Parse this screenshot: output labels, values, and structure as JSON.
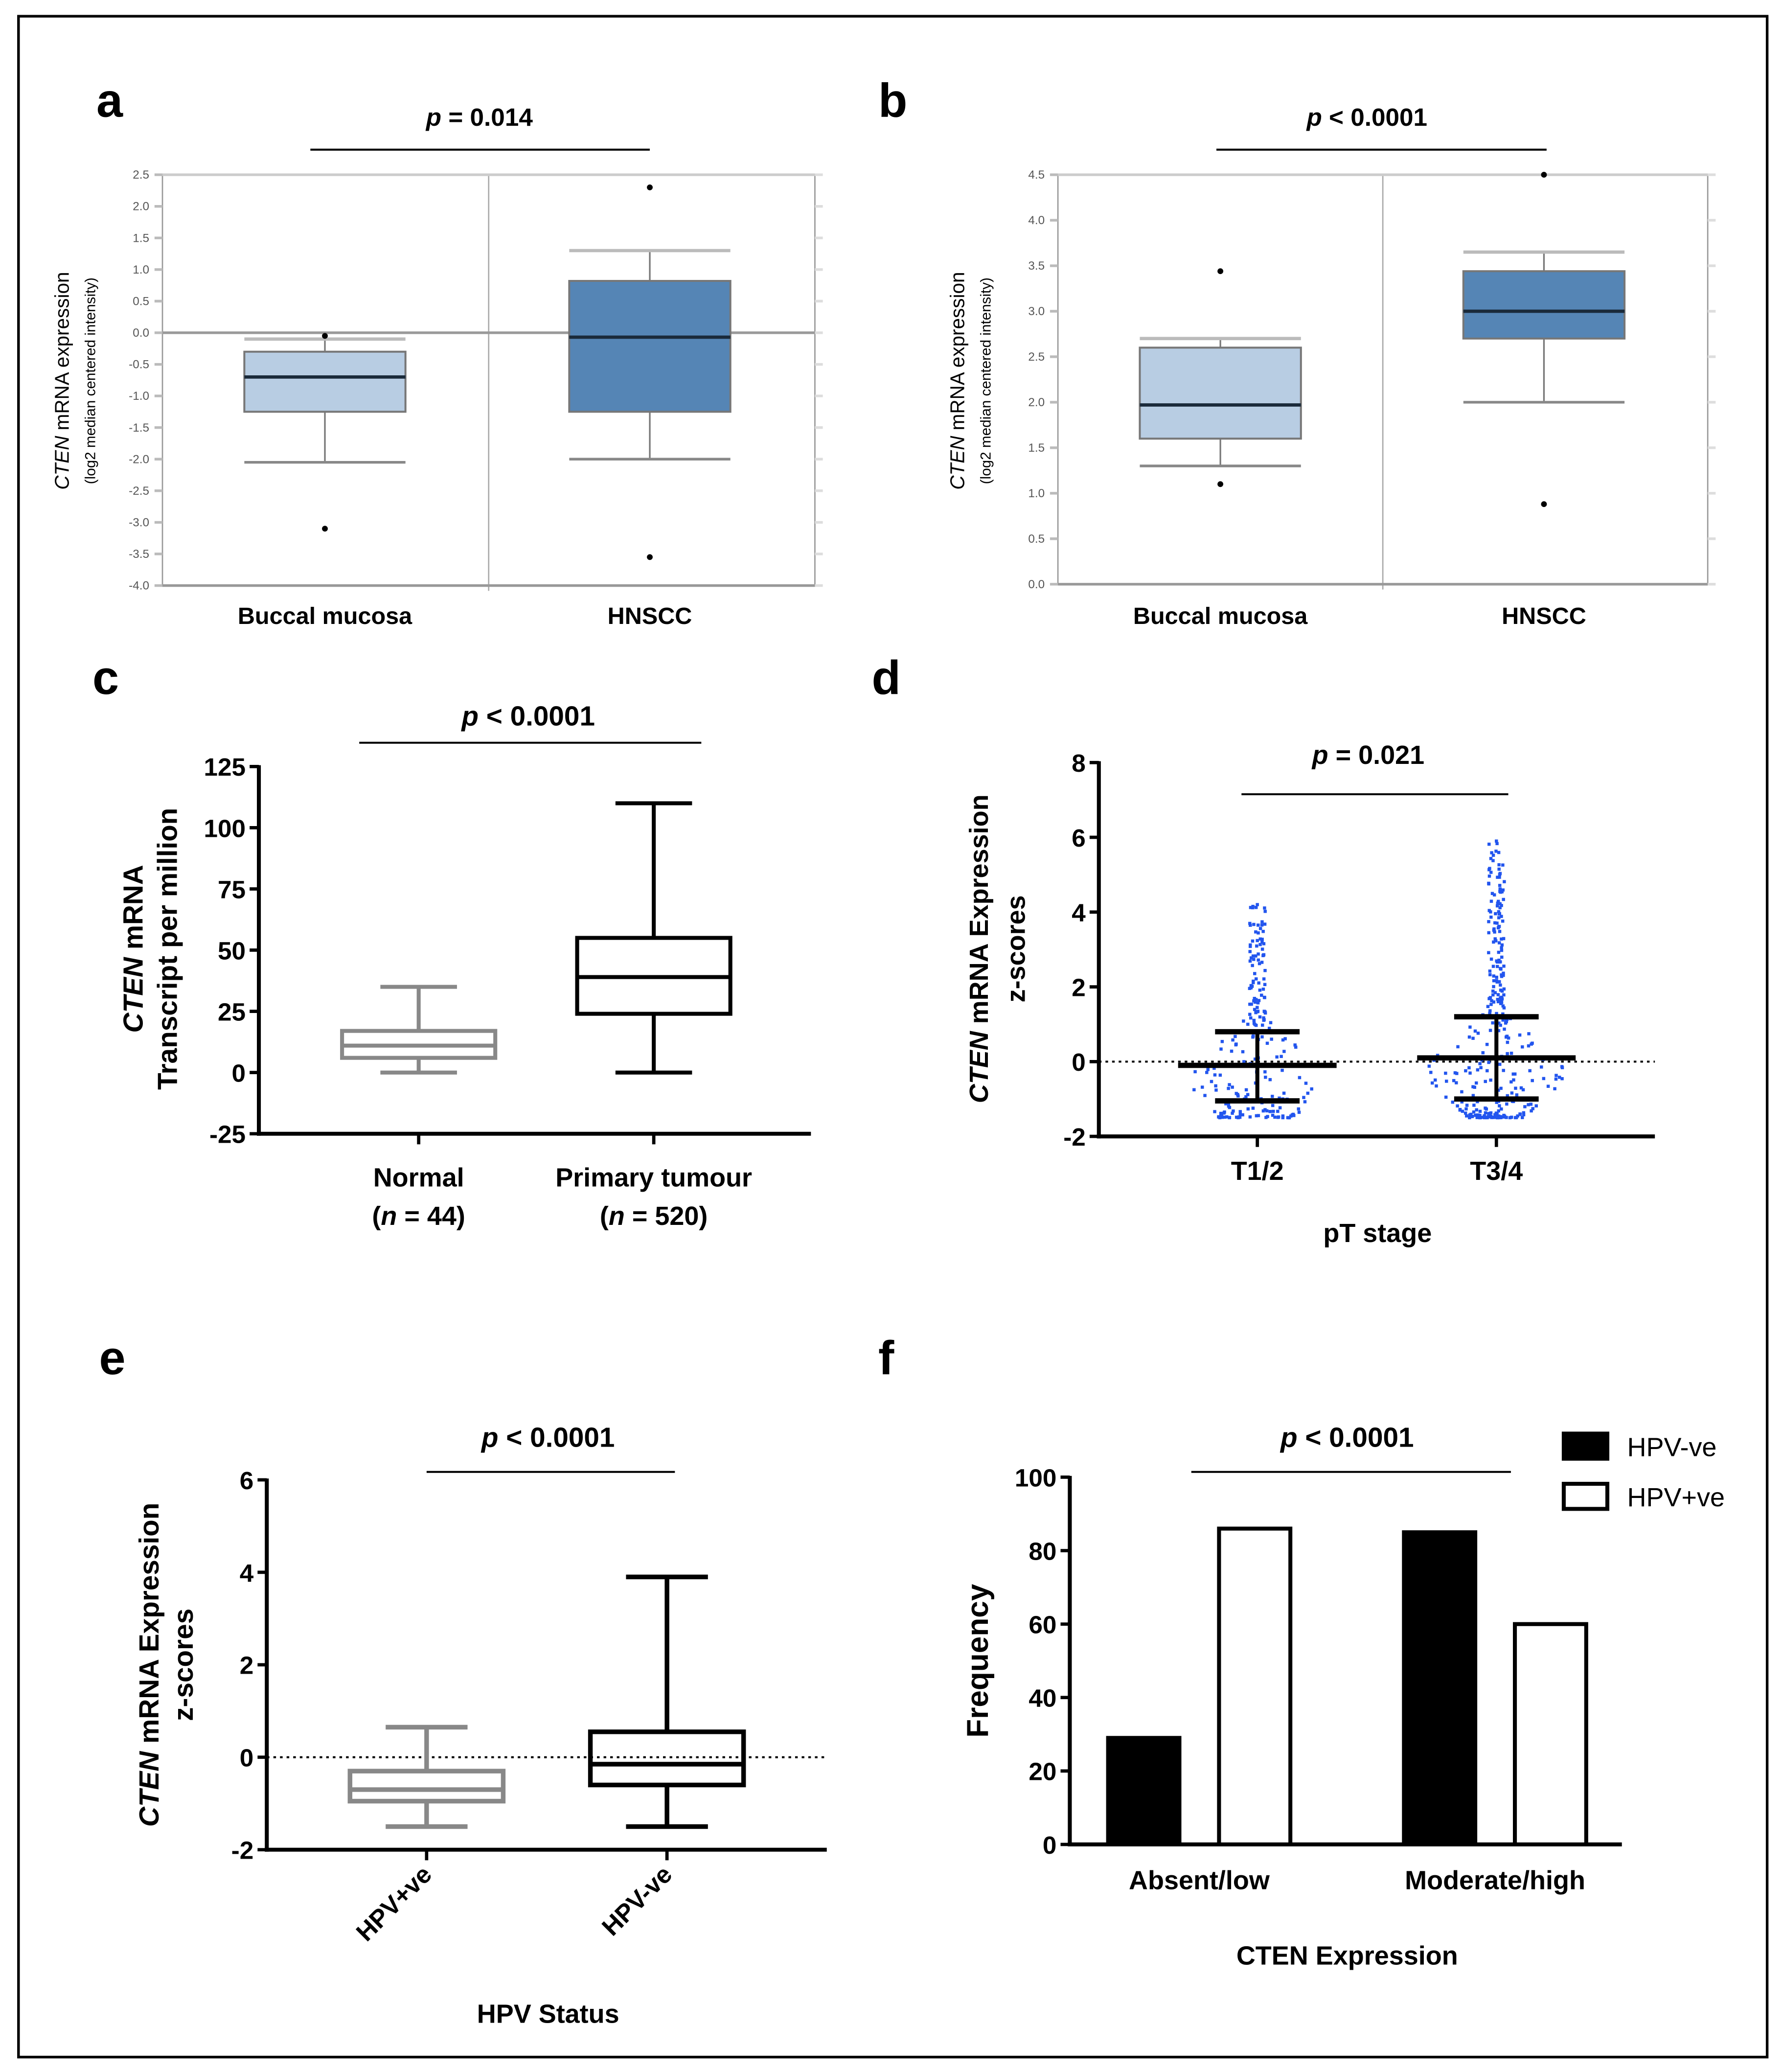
{
  "chart_data": [
    {
      "panel": "a",
      "type": "box",
      "p_symbol": "p",
      "p_rest": " = 0.014",
      "ylabel_italic": "CTEN",
      "ylabel_rest": " mRNA expression",
      "ylabel2": "(log2 median centered intensity)",
      "ylim": [
        -4.0,
        2.5
      ],
      "yticks": [
        "2.5",
        "2.0",
        "1.5",
        "1.0",
        "0.5",
        "0.0",
        "-0.5",
        "-1.0",
        "-1.5",
        "-2.0",
        "-2.5",
        "-3.0",
        "-3.5",
        "-4.0"
      ],
      "categories": [
        "Buccal mucosa",
        "HNSCC"
      ],
      "boxes": [
        {
          "min": -2.05,
          "q1": -1.25,
          "median": -0.7,
          "q3": -0.3,
          "max": -0.1,
          "outliers": [
            -0.05,
            -3.1
          ],
          "color": "#b8cde3"
        },
        {
          "min": -2.0,
          "q1": -1.25,
          "median": -0.07,
          "q3": 0.82,
          "max": 1.3,
          "outliers": [
            2.3,
            -3.55
          ],
          "color": "#5585b5"
        }
      ],
      "refline": 0
    },
    {
      "panel": "b",
      "type": "box",
      "p_symbol": "p",
      "p_rest": " < 0.0001",
      "ylabel_italic": "CTEN",
      "ylabel_rest": " mRNA expression",
      "ylabel2": "(log2 median centered intensity)",
      "ylim": [
        0,
        4.5
      ],
      "yticks": [
        "4.5",
        "4.0",
        "3.5",
        "3.0",
        "2.5",
        "2.0",
        "1.5",
        "1.0",
        "0.5",
        "0.0"
      ],
      "categories": [
        "Buccal mucosa",
        "HNSCC"
      ],
      "boxes": [
        {
          "min": 1.3,
          "q1": 1.6,
          "median": 1.97,
          "q3": 2.6,
          "max": 2.7,
          "outliers": [
            3.44,
            1.1
          ],
          "color": "#b8cde3"
        },
        {
          "min": 2.0,
          "q1": 2.7,
          "median": 3.0,
          "q3": 3.44,
          "max": 3.65,
          "outliers": [
            4.5,
            0.88
          ],
          "color": "#5585b5"
        }
      ]
    },
    {
      "panel": "c",
      "type": "box",
      "p_symbol": "p",
      "p_rest": " < 0.0001",
      "ylabel_italic": "CTEN",
      "ylabel_rest": " mRNA",
      "ylabel2": "Transcript per million",
      "ylim": [
        -25,
        125
      ],
      "yticks": [
        "125",
        "100",
        "75",
        "50",
        "25",
        "0",
        "-25"
      ],
      "categories": [
        "Normal",
        "Primary tumour"
      ],
      "n_labels": [
        {
          "pre": "(",
          "n": "n",
          " rest": "",
          "rest": " = 44)"
        },
        {
          "pre": "(",
          "n": "n",
          "rest": " = 520)"
        }
      ],
      "boxes": [
        {
          "min": 0,
          "q1": 6,
          "median": 11,
          "q3": 17,
          "max": 35,
          "color": "#888888"
        },
        {
          "min": 0,
          "q1": 24,
          "median": 39,
          "q3": 55,
          "max": 110,
          "color": "#000000"
        }
      ]
    },
    {
      "panel": "d",
      "type": "scatter",
      "p_symbol": "p",
      "p_rest": " = 0.021",
      "ylabel_italic": "CTEN",
      "ylabel_rest": " mRNA Expression",
      "ylabel2": "z-scores",
      "xlabel": "pT stage",
      "ylim": [
        -2,
        8
      ],
      "yticks": [
        "8",
        "6",
        "4",
        "2",
        "0",
        "-2"
      ],
      "categories": [
        "T1/2",
        "T3/4"
      ],
      "groups": [
        {
          "mean": -0.1,
          "sd_low": -1.05,
          "sd_high": 0.8,
          "range": [
            -1.5,
            4.2
          ]
        },
        {
          "mean": 0.1,
          "sd_low": -1.0,
          "sd_high": 1.2,
          "range": [
            -1.5,
            5.9
          ]
        }
      ],
      "point_color": "#2255ee"
    },
    {
      "panel": "e",
      "type": "box",
      "p_symbol": "p",
      "p_rest": " < 0.0001",
      "ylabel_italic": "CTEN",
      "ylabel_rest": " mRNA Expression",
      "ylabel2": "z-scores",
      "xlabel": "HPV Status",
      "ylim": [
        -2,
        6
      ],
      "yticks": [
        "6",
        "4",
        "2",
        "0",
        "-2"
      ],
      "categories": [
        "HPV+ve",
        "HPV-ve"
      ],
      "boxes": [
        {
          "min": -1.5,
          "q1": -0.95,
          "median": -0.7,
          "q3": -0.3,
          "max": 0.65,
          "color": "#888888"
        },
        {
          "min": -1.5,
          "q1": -0.6,
          "median": -0.15,
          "q3": 0.55,
          "max": 3.9,
          "color": "#000000"
        }
      ]
    },
    {
      "panel": "f",
      "type": "bar",
      "p_symbol": "p",
      "p_rest": " < 0.0001",
      "ylabel": "Frequency",
      "xlabel": "CTEN  Expression",
      "ylim": [
        0,
        100
      ],
      "yticks": [
        "100",
        "80",
        "60",
        "40",
        "20",
        "0"
      ],
      "categories": [
        "Absent/low",
        "Moderate/high"
      ],
      "series": [
        {
          "name": "HPV-ve",
          "values": [
            29,
            85
          ],
          "color": "#000000"
        },
        {
          "name": "HPV+ve",
          "values": [
            86,
            60
          ],
          "color": "#ffffff"
        }
      ],
      "legend": "top-right"
    }
  ]
}
